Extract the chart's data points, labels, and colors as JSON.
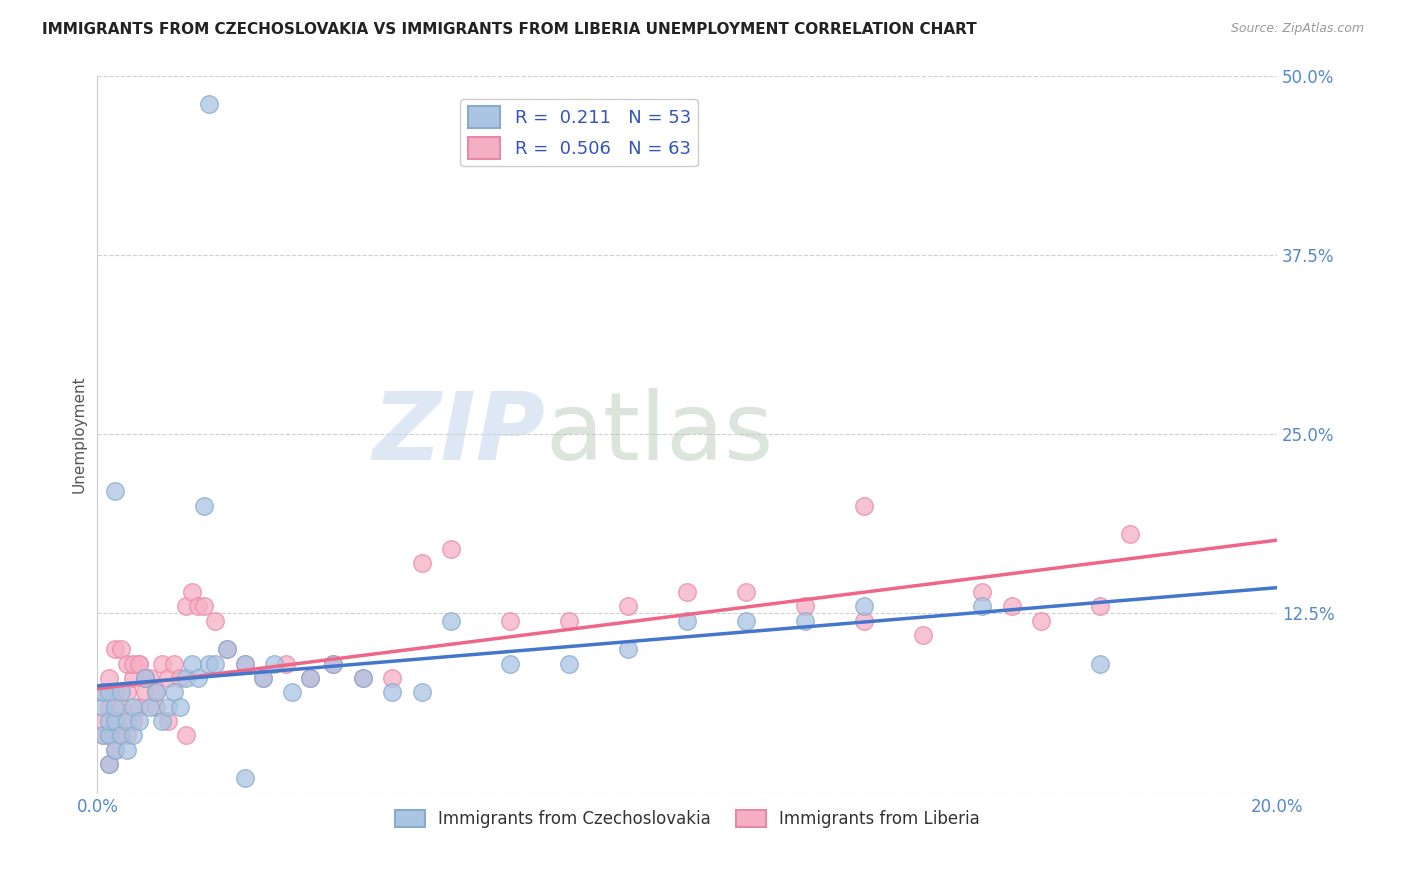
{
  "title": "IMMIGRANTS FROM CZECHOSLOVAKIA VS IMMIGRANTS FROM LIBERIA UNEMPLOYMENT CORRELATION CHART",
  "source": "Source: ZipAtlas.com",
  "ylabel": "Unemployment",
  "xlim": [
    0.0,
    0.2
  ],
  "ylim": [
    0.0,
    0.5
  ],
  "xticks": [
    0.0,
    0.05,
    0.1,
    0.15,
    0.2
  ],
  "yticks": [
    0.0,
    0.125,
    0.25,
    0.375,
    0.5
  ],
  "background_color": "#ffffff",
  "grid_color": "#d0d0d0",
  "watermark_zip": "ZIP",
  "watermark_atlas": "atlas",
  "legend_R1": "0.211",
  "legend_N1": "53",
  "legend_R2": "0.506",
  "legend_N2": "63",
  "color_czech": "#aac4e2",
  "color_liberia": "#f5afc5",
  "color_czech_edge": "#88aacc",
  "color_liberia_edge": "#e888a8",
  "line_color_czech": "#4477cc",
  "line_color_liberia": "#ee6688",
  "scatter_czech_x": [
    0.001,
    0.001,
    0.001,
    0.002,
    0.002,
    0.002,
    0.002,
    0.003,
    0.003,
    0.003,
    0.004,
    0.004,
    0.005,
    0.005,
    0.006,
    0.006,
    0.007,
    0.008,
    0.009,
    0.01,
    0.011,
    0.012,
    0.013,
    0.014,
    0.015,
    0.016,
    0.017,
    0.018,
    0.019,
    0.02,
    0.022,
    0.025,
    0.028,
    0.03,
    0.033,
    0.036,
    0.04,
    0.045,
    0.05,
    0.055,
    0.06,
    0.07,
    0.08,
    0.09,
    0.1,
    0.11,
    0.12,
    0.13,
    0.15,
    0.17,
    0.019,
    0.003,
    0.025
  ],
  "scatter_czech_y": [
    0.04,
    0.06,
    0.07,
    0.02,
    0.04,
    0.05,
    0.07,
    0.03,
    0.05,
    0.06,
    0.04,
    0.07,
    0.03,
    0.05,
    0.04,
    0.06,
    0.05,
    0.08,
    0.06,
    0.07,
    0.05,
    0.06,
    0.07,
    0.06,
    0.08,
    0.09,
    0.08,
    0.2,
    0.09,
    0.09,
    0.1,
    0.09,
    0.08,
    0.09,
    0.07,
    0.08,
    0.09,
    0.08,
    0.07,
    0.07,
    0.12,
    0.09,
    0.09,
    0.1,
    0.12,
    0.12,
    0.12,
    0.13,
    0.13,
    0.09,
    0.48,
    0.21,
    0.01
  ],
  "scatter_liberia_x": [
    0.001,
    0.001,
    0.001,
    0.002,
    0.002,
    0.002,
    0.002,
    0.003,
    0.003,
    0.003,
    0.004,
    0.004,
    0.005,
    0.005,
    0.006,
    0.006,
    0.007,
    0.007,
    0.008,
    0.009,
    0.01,
    0.011,
    0.012,
    0.013,
    0.014,
    0.015,
    0.016,
    0.017,
    0.018,
    0.02,
    0.022,
    0.025,
    0.028,
    0.032,
    0.036,
    0.04,
    0.045,
    0.05,
    0.055,
    0.06,
    0.07,
    0.08,
    0.09,
    0.1,
    0.11,
    0.12,
    0.13,
    0.14,
    0.15,
    0.155,
    0.16,
    0.17,
    0.175,
    0.003,
    0.004,
    0.005,
    0.006,
    0.007,
    0.008,
    0.01,
    0.012,
    0.015,
    0.13
  ],
  "scatter_liberia_y": [
    0.04,
    0.05,
    0.07,
    0.02,
    0.04,
    0.06,
    0.08,
    0.03,
    0.05,
    0.07,
    0.04,
    0.06,
    0.04,
    0.07,
    0.05,
    0.08,
    0.06,
    0.09,
    0.07,
    0.08,
    0.07,
    0.09,
    0.08,
    0.09,
    0.08,
    0.13,
    0.14,
    0.13,
    0.13,
    0.12,
    0.1,
    0.09,
    0.08,
    0.09,
    0.08,
    0.09,
    0.08,
    0.08,
    0.16,
    0.17,
    0.12,
    0.12,
    0.13,
    0.14,
    0.14,
    0.13,
    0.12,
    0.11,
    0.14,
    0.13,
    0.12,
    0.13,
    0.18,
    0.1,
    0.1,
    0.09,
    0.09,
    0.09,
    0.08,
    0.06,
    0.05,
    0.04,
    0.2
  ]
}
